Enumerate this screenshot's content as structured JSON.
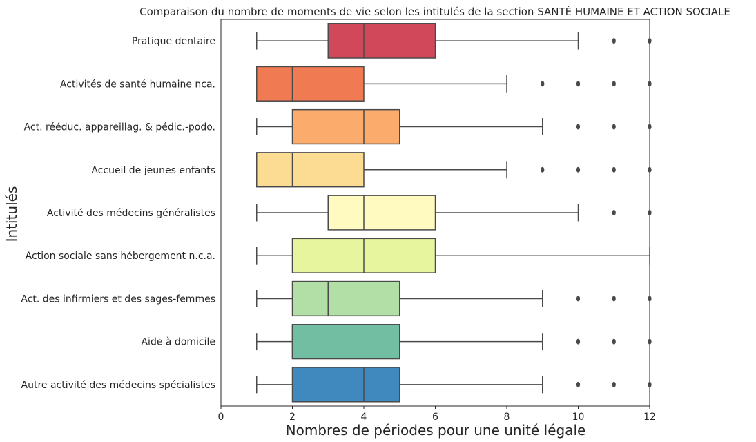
{
  "chart_data": {
    "type": "boxplot",
    "orientation": "horizontal",
    "title": "Comparaison du nombre de moments de vie selon les intitulés de la section SANTÉ HUMAINE ET ACTION SOCIALE",
    "xlabel": "Nombres de périodes pour une unité légale",
    "ylabel": "Intitulés",
    "xlim": [
      0,
      12
    ],
    "xticks": [
      0,
      2,
      4,
      6,
      8,
      10,
      12
    ],
    "grid": false,
    "series": [
      {
        "name": "Pratique dentaire",
        "color": "#d0485a",
        "whislo": 1,
        "q1": 3,
        "med": 4,
        "q3": 6,
        "whishi": 10,
        "fliers": [
          11,
          12
        ]
      },
      {
        "name": "Activités de santé humaine nca.",
        "color": "#f07a52",
        "whislo": 1,
        "q1": 1,
        "med": 2,
        "q3": 4,
        "whishi": 8,
        "fliers": [
          9,
          10,
          11,
          12
        ]
      },
      {
        "name": "Act. rééduc. appareillag. & pédic.-podo.",
        "color": "#fbab6c",
        "whislo": 1,
        "q1": 2,
        "med": 4,
        "q3": 5,
        "whishi": 9,
        "fliers": [
          10,
          11,
          12
        ]
      },
      {
        "name": "Accueil de jeunes enfants",
        "color": "#fcdc92",
        "whislo": 1,
        "q1": 1,
        "med": 2,
        "q3": 4,
        "whishi": 8,
        "fliers": [
          9,
          10,
          11,
          12
        ]
      },
      {
        "name": "Activité des médecins généralistes",
        "color": "#fefac0",
        "whislo": 1,
        "q1": 3,
        "med": 4,
        "q3": 6,
        "whishi": 10,
        "fliers": [
          11,
          12
        ]
      },
      {
        "name": "Action sociale sans hébergement n.c.a.",
        "color": "#e7f59f",
        "whislo": 1,
        "q1": 2,
        "med": 4,
        "q3": 6,
        "whishi": 12,
        "fliers": []
      },
      {
        "name": "Act. des infirmiers et des sages-femmes",
        "color": "#b1dfa6",
        "whislo": 1,
        "q1": 2,
        "med": 3,
        "q3": 5,
        "whishi": 9,
        "fliers": [
          10,
          11,
          12
        ]
      },
      {
        "name": "Aide à domicile",
        "color": "#72bea3",
        "whislo": 1,
        "q1": 2,
        "med": 2,
        "q3": 5,
        "whishi": 9,
        "fliers": [
          10,
          11,
          12
        ]
      },
      {
        "name": "Autre activité des médecins spécialistes",
        "color": "#4089bf",
        "whislo": 1,
        "q1": 2,
        "med": 4,
        "q3": 5,
        "whishi": 9,
        "fliers": [
          10,
          11,
          12
        ]
      }
    ]
  }
}
